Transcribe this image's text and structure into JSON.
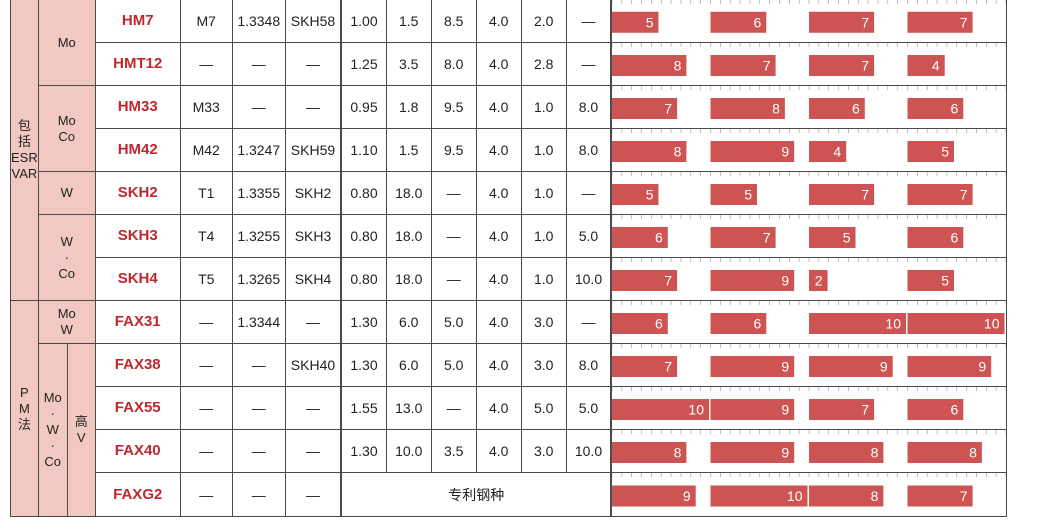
{
  "groups": {
    "melt": {
      "label": [
        "包",
        "括",
        "ESR",
        "VAR"
      ]
    },
    "pm": {
      "label": [
        "P",
        "M",
        "法"
      ]
    },
    "pm_v": {
      "label": [
        "高",
        "V"
      ]
    }
  },
  "subgroups": {
    "mo": {
      "label": [
        "Mo"
      ]
    },
    "moco": {
      "label": [
        "Mo",
        "Co"
      ]
    },
    "w": {
      "label": [
        "W"
      ]
    },
    "wco": {
      "label": [
        "W",
        "·",
        "Co"
      ]
    },
    "mow": {
      "label": [
        "Mo",
        "W"
      ]
    },
    "mowco": {
      "label": [
        "Mo",
        "·",
        "W",
        "·",
        "Co"
      ]
    }
  },
  "rows": [
    {
      "grade": "HM7",
      "aisi": "M7",
      "din": "1.3348",
      "jis": "SKH58",
      "c": "1.00",
      "w": "1.5",
      "mo": "8.5",
      "cr": "4.0",
      "v": "2.0",
      "co": "—",
      "bars": [
        5,
        6,
        7,
        7
      ]
    },
    {
      "grade": "HMT12",
      "aisi": "—",
      "din": "—",
      "jis": "—",
      "c": "1.25",
      "w": "3.5",
      "mo": "8.0",
      "cr": "4.0",
      "v": "2.8",
      "co": "—",
      "bars": [
        8,
        7,
        7,
        4
      ]
    },
    {
      "grade": "HM33",
      "aisi": "M33",
      "din": "—",
      "jis": "—",
      "c": "0.95",
      "w": "1.8",
      "mo": "9.5",
      "cr": "4.0",
      "v": "1.0",
      "co": "8.0",
      "bars": [
        7,
        8,
        6,
        6
      ]
    },
    {
      "grade": "HM42",
      "aisi": "M42",
      "din": "1.3247",
      "jis": "SKH59",
      "c": "1.10",
      "w": "1.5",
      "mo": "9.5",
      "cr": "4.0",
      "v": "1.0",
      "co": "8.0",
      "bars": [
        8,
        9,
        4,
        5
      ]
    },
    {
      "grade": "SKH2",
      "aisi": "T1",
      "din": "1.3355",
      "jis": "SKH2",
      "c": "0.80",
      "w": "18.0",
      "mo": "—",
      "cr": "4.0",
      "v": "1.0",
      "co": "—",
      "bars": [
        5,
        5,
        7,
        7
      ]
    },
    {
      "grade": "SKH3",
      "aisi": "T4",
      "din": "1.3255",
      "jis": "SKH3",
      "c": "0.80",
      "w": "18.0",
      "mo": "—",
      "cr": "4.0",
      "v": "1.0",
      "co": "5.0",
      "bars": [
        6,
        7,
        5,
        6
      ]
    },
    {
      "grade": "SKH4",
      "aisi": "T5",
      "din": "1.3265",
      "jis": "SKH4",
      "c": "0.80",
      "w": "18.0",
      "mo": "—",
      "cr": "4.0",
      "v": "1.0",
      "co": "10.0",
      "bars": [
        7,
        9,
        2,
        5
      ]
    },
    {
      "grade": "FAX31",
      "aisi": "—",
      "din": "1.3344",
      "jis": "—",
      "c": "1.30",
      "w": "6.0",
      "mo": "5.0",
      "cr": "4.0",
      "v": "3.0",
      "co": "—",
      "bars": [
        6,
        6,
        10,
        10
      ]
    },
    {
      "grade": "FAX38",
      "aisi": "—",
      "din": "—",
      "jis": "SKH40",
      "c": "1.30",
      "w": "6.0",
      "mo": "5.0",
      "cr": "4.0",
      "v": "3.0",
      "co": "8.0",
      "bars": [
        7,
        9,
        9,
        9
      ]
    },
    {
      "grade": "FAX55",
      "aisi": "—",
      "din": "—",
      "jis": "—",
      "c": "1.55",
      "w": "13.0",
      "mo": "—",
      "cr": "4.0",
      "v": "5.0",
      "co": "5.0",
      "bars": [
        10,
        9,
        7,
        6
      ]
    },
    {
      "grade": "FAX40",
      "aisi": "—",
      "din": "—",
      "jis": "—",
      "c": "1.30",
      "w": "10.0",
      "mo": "3.5",
      "cr": "4.0",
      "v": "3.0",
      "co": "10.0",
      "bars": [
        8,
        9,
        8,
        8
      ]
    },
    {
      "grade": "FAXG2",
      "aisi": "—",
      "din": "—",
      "jis": "—",
      "patent": "专利钢种",
      "bars": [
        9,
        10,
        8,
        7
      ]
    }
  ],
  "colors": {
    "bar": "#cd5452",
    "group_bg": "#f1c9c2",
    "grade_text": "#c0282f"
  },
  "bar_scale_max": 10
}
